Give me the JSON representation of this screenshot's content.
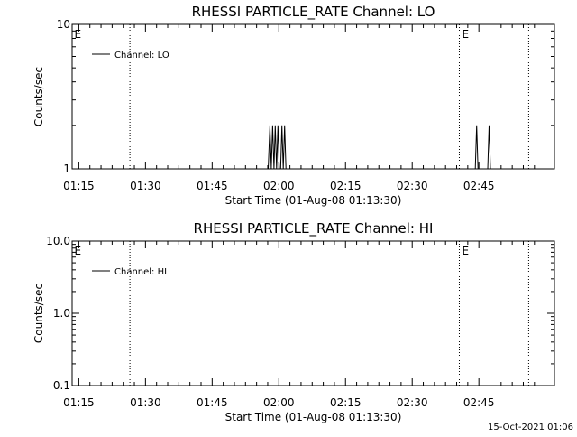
{
  "footer": {
    "timestamp": "15-Oct-2021 01:06"
  },
  "chart_data": [
    {
      "type": "line",
      "title": "RHESSI PARTICLE_RATE Channel: LO",
      "xlabel": "Start Time (01-Aug-08 01:13:30)",
      "ylabel": "Counts/sec",
      "yscale": "log",
      "ylim": [
        1,
        10
      ],
      "xlim_minutes": [
        73.5,
        182
      ],
      "x_ticks": [
        {
          "t": 75,
          "label": "01:15"
        },
        {
          "t": 90,
          "label": "01:30"
        },
        {
          "t": 105,
          "label": "01:45"
        },
        {
          "t": 120,
          "label": "02:00"
        },
        {
          "t": 135,
          "label": "02:15"
        },
        {
          "t": 150,
          "label": "02:30"
        },
        {
          "t": 165,
          "label": "02:45"
        }
      ],
      "y_ticks": [
        {
          "v": 1,
          "label": "1"
        },
        {
          "v": 10,
          "label": "10"
        }
      ],
      "markers": [
        {
          "t": 161,
          "label": "E"
        },
        {
          "t": 73.8,
          "label": "E"
        }
      ],
      "dotted_lines": [
        86.5,
        160.6,
        176.2
      ],
      "legend": {
        "label": "Channel: LO",
        "position": "top-left"
      },
      "series": [
        {
          "name": "Channel: LO",
          "x": [
            73.5,
            117.6,
            118.0,
            118.3,
            118.6,
            118.9,
            119.2,
            119.5,
            119.8,
            120.1,
            120.4,
            120.7,
            121.0,
            121.3,
            121.6,
            164.2,
            164.5,
            164.8,
            165.1,
            165.4,
            167.0,
            167.3,
            167.6,
            167.9,
            168.2,
            182
          ],
          "y": [
            1,
            1,
            2,
            1,
            2,
            1,
            2,
            1,
            2,
            1,
            1,
            2,
            1,
            2,
            1,
            1,
            2,
            1,
            1,
            1,
            1,
            2,
            1,
            1,
            1,
            1
          ]
        }
      ]
    },
    {
      "type": "line",
      "title": "RHESSI PARTICLE_RATE Channel: HI",
      "xlabel": "Start Time (01-Aug-08 01:13:30)",
      "ylabel": "Counts/sec",
      "yscale": "log",
      "ylim": [
        0.1,
        10
      ],
      "xlim_minutes": [
        73.5,
        182
      ],
      "x_ticks": [
        {
          "t": 75,
          "label": "01:15"
        },
        {
          "t": 90,
          "label": "01:30"
        },
        {
          "t": 105,
          "label": "01:45"
        },
        {
          "t": 120,
          "label": "02:00"
        },
        {
          "t": 135,
          "label": "02:15"
        },
        {
          "t": 150,
          "label": "02:30"
        },
        {
          "t": 165,
          "label": "02:45"
        }
      ],
      "y_ticks": [
        {
          "v": 0.1,
          "label": "0.1"
        },
        {
          "v": 1,
          "label": "1.0"
        },
        {
          "v": 10,
          "label": "10.0"
        }
      ],
      "markers": [
        {
          "t": 161,
          "label": "E"
        },
        {
          "t": 73.8,
          "label": "E"
        }
      ],
      "dotted_lines": [
        86.5,
        160.6,
        176.2
      ],
      "legend": {
        "label": "Channel: HI",
        "position": "top-left"
      },
      "series": [
        {
          "name": "Channel: HI",
          "x": [],
          "y": []
        }
      ]
    }
  ]
}
